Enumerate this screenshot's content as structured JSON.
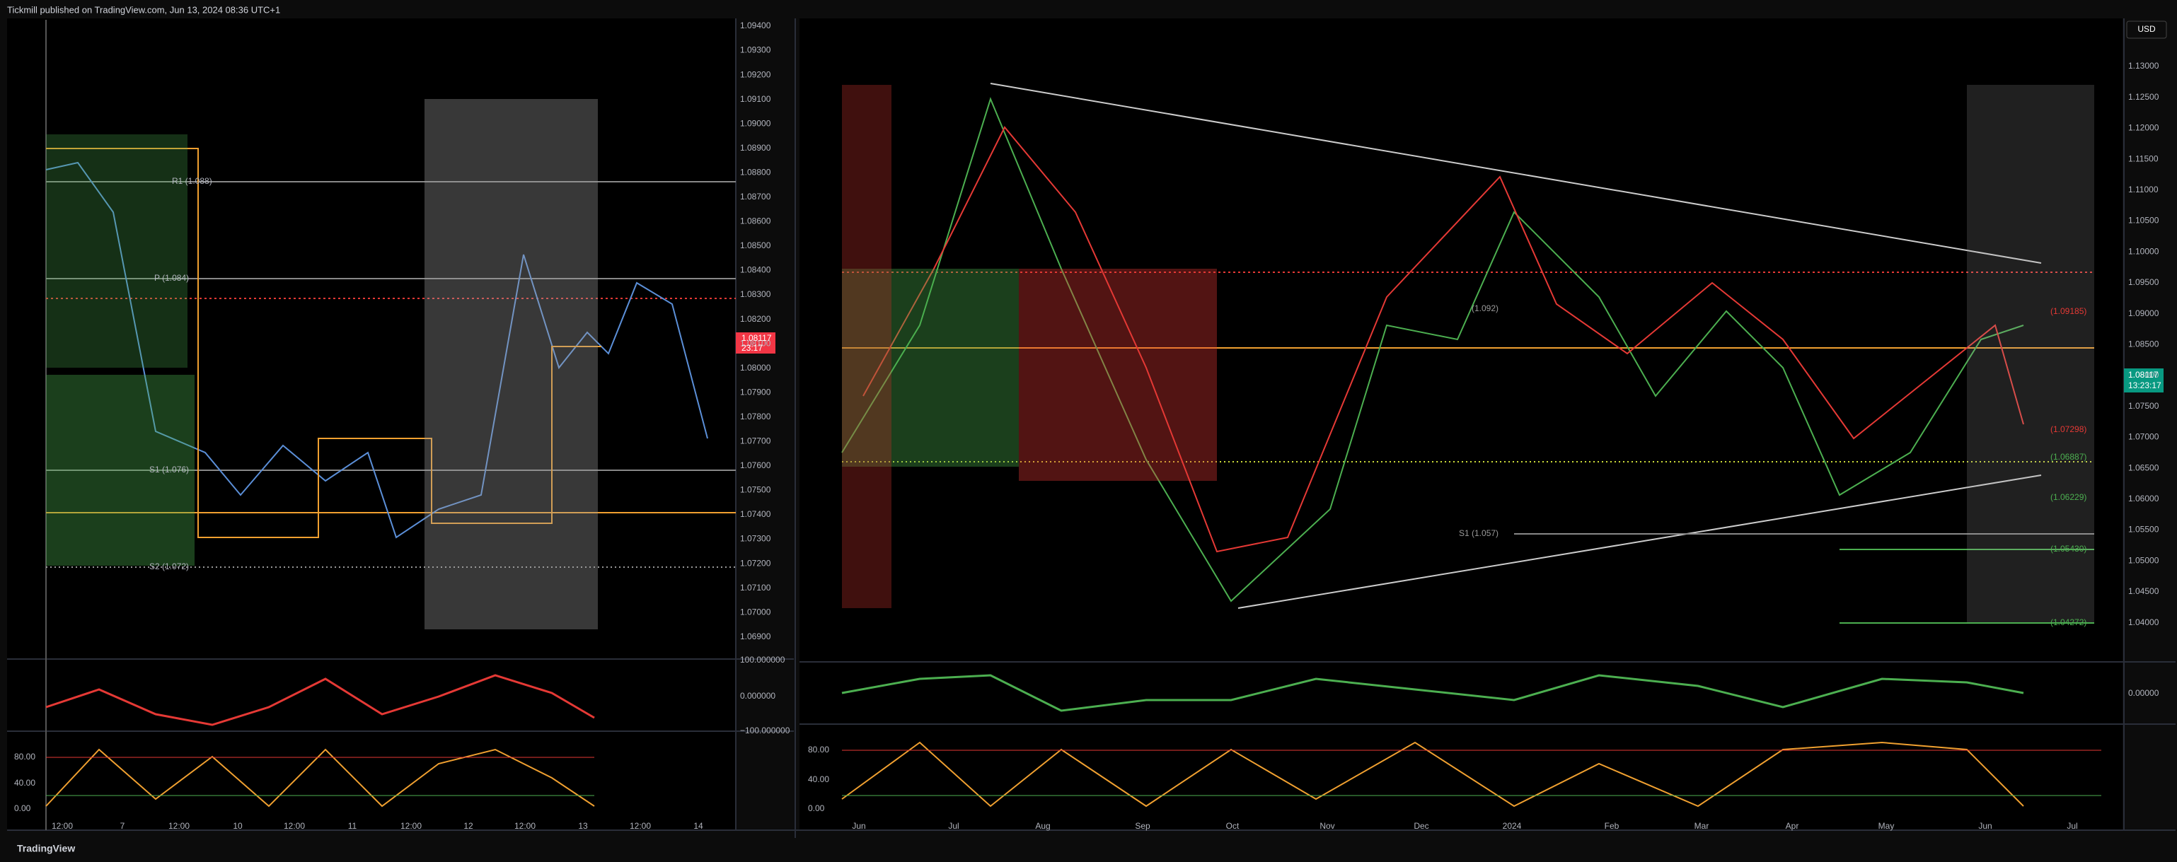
{
  "header": {
    "text": "Tickmill published on TradingView.com, Jun 13, 2024 08:36 UTC+1"
  },
  "left_chart": {
    "price_axis": [
      "1.09400",
      "1.09300",
      "1.09200",
      "1.09100",
      "1.09000",
      "1.08900",
      "1.08800",
      "1.08700",
      "1.08600",
      "1.08500",
      "1.08400",
      "1.08300",
      "1.08200",
      "1.08100",
      "1.08000",
      "1.07900",
      "1.07800",
      "1.07700",
      "1.07600",
      "1.07500",
      "1.07400",
      "1.07300",
      "1.07200",
      "1.07100",
      "1.07000",
      "1.06900"
    ],
    "price_tag": {
      "price": "1.08117",
      "countdown": "23:17"
    },
    "levels": [
      "R1 (1.088)",
      "P (1.084)",
      "S1 (1.076)",
      "S2 (1.072)"
    ],
    "oscillator_axis": [
      "100.000000",
      "0.000000",
      "−100.000000"
    ],
    "stoch_axis": [
      "80.00",
      "40.00",
      "0.00"
    ],
    "time_axis": [
      "12:00",
      "7",
      "12:00",
      "10",
      "12:00",
      "11",
      "12:00",
      "12",
      "12:00",
      "13",
      "12:00",
      "14"
    ]
  },
  "right_chart": {
    "currency": "USD",
    "price_axis": [
      "1.13000",
      "1.12500",
      "1.12000",
      "1.11500",
      "1.11000",
      "1.10500",
      "1.10000",
      "1.09500",
      "1.09000",
      "1.08500",
      "1.08000",
      "1.07500",
      "1.07000",
      "1.06500",
      "1.06000",
      "1.05500",
      "1.05000",
      "1.04500",
      "1.04000"
    ],
    "price_tag": {
      "price": "1.08117",
      "countdown": "13:23:17"
    },
    "levels": [
      "(1.092)",
      "S1 (1.057)",
      "(1.09185)",
      "(1.07298)",
      "(1.06887)",
      "(1.06229)",
      "(1.05430)",
      "(1.04272)"
    ],
    "oscillator_axis": [
      "0.00000"
    ],
    "stoch_axis": [
      "80.00",
      "40.00",
      "0.00"
    ],
    "time_axis": [
      "Jun",
      "Jul",
      "Aug",
      "Sep",
      "Oct",
      "Nov",
      "Dec",
      "2024",
      "Feb",
      "Mar",
      "Apr",
      "May",
      "Jun",
      "Jul"
    ]
  },
  "footer": {
    "brand": "TradingView"
  }
}
